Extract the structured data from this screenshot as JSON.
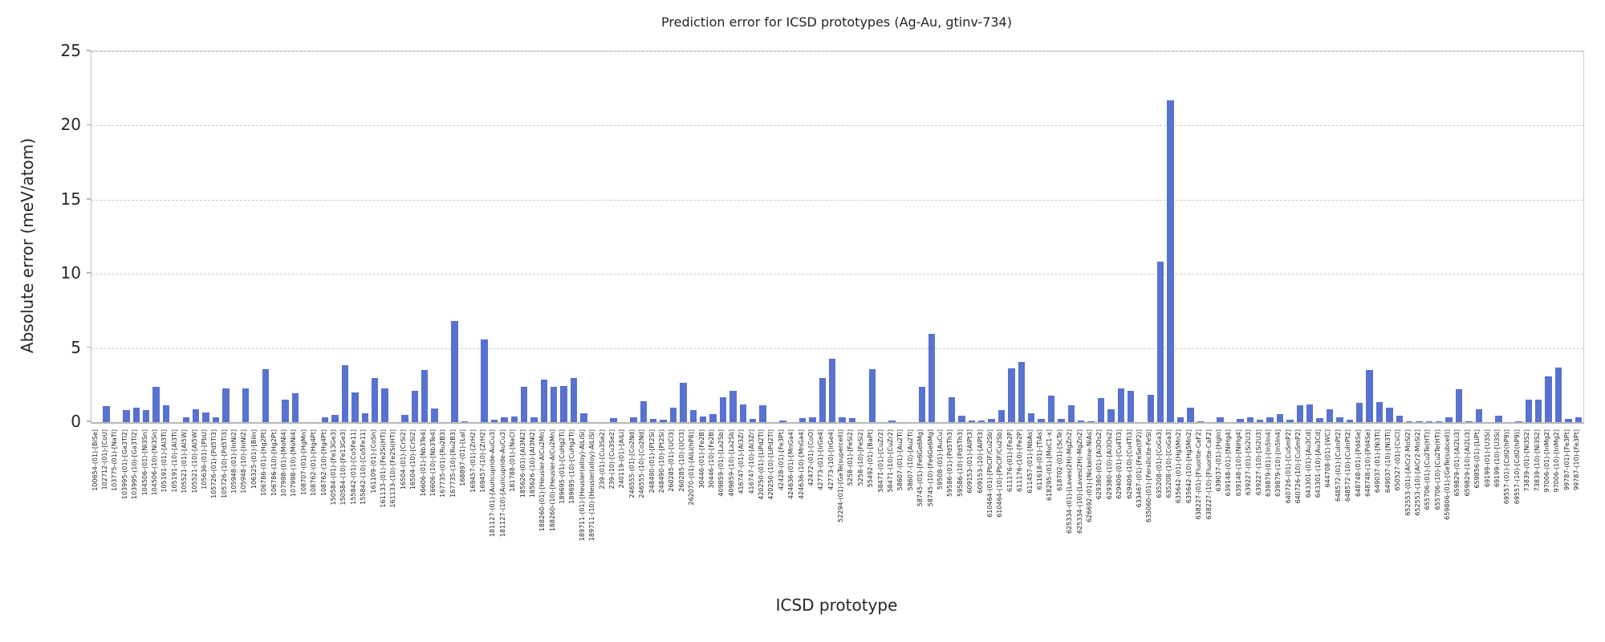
{
  "figure": {
    "background": "#ffffff"
  },
  "style": {
    "bar_color": "#5872d0",
    "grid_color": "#cccccc",
    "spine_color": "#c0c0c0",
    "text_color": "#262626"
  },
  "chart_data": {
    "type": "bar",
    "title": "Prediction error for ICSD prototypes (Ag-Au, gtinv-734)",
    "xlabel": "ICSD prototype",
    "ylabel": "Absolute error (meV/atom)",
    "ylim": [
      0,
      25
    ],
    "yticks": [
      0,
      5,
      10,
      15,
      20,
      25
    ],
    "grid": "horizontal-dashed",
    "legend": "none",
    "categories": [
      "100654-(01)-[BiSe]",
      "102712-(01)-[CoU]",
      "103775-(01)-[NaTl]",
      "103995-(01)-[Ga3Ti2]",
      "103995-(10)-[Ga3Ti2]",
      "104506-(01)-[Ni3Sn]",
      "104506-(10)-[Ni3Sn]",
      "105191-(01)-[Al3Ti]",
      "105191-(10)-[Al3Ti]",
      "105521-(01)-[Al5W]",
      "105521-(10)-[Al5W]",
      "105636-(01)-[PbU]",
      "105726-(01)-[Pd5Ti3]",
      "105726-(10)-[Pd5Ti3]",
      "105948-(01)-[InNi2]",
      "105948-(10)-[InNi2]",
      "106325-(01)-[BiIn]",
      "106786-(01)-[Hg2Pt]",
      "106786-(10)-[Hg2Pt]",
      "107998-(01)-[MoNi4]",
      "107998-(10)-[MoNi4]",
      "108707-(01)-[HgMn]",
      "108762-(01)-[Hg4Pt]",
      "108762-(10)-[Hg4Pt]",
      "150584-(01)-[Fe13Ge3]",
      "150584-(10)-[Fe13Ge3]",
      "155842-(01)-[Co5Fe11]",
      "155842-(10)-[Co5Fe11]",
      "161109-(01)-[CoSn]",
      "161133-(01)-[Fe2Si(HT)]",
      "161133-(10)-[Fe2Si(HT)]",
      "16504-(01)-[CrSi2]",
      "16504-(10)-[CrSi2]",
      "16606-(01)-[Nb3Te4]",
      "16606-(10)-[Nb3Te4]",
      "167735-(01)-[Ru2B3]",
      "167735-(10)-[Ru2B3]",
      "168897-(01)-[LaI]",
      "169457-(01)-[ZrH2]",
      "169457-(10)-[ZrH2]",
      "181127-(01)-[Auricupride-AuCu3]",
      "181127-(10)-[Auricupride-AuCu3]",
      "181788-(01)-[NaCl]",
      "185626-(01)-[Al3Ni2]",
      "185626-(10)-[Al3Ni2]",
      "188260-(01)-[Heusler-AlCu2Mn]",
      "188260-(10)-[Heusler-AlCu2Mn]",
      "189695-(01)-[CuHg2Ti]",
      "189695-(10)-[CuHg2Ti]",
      "189711-(01)-[Heusler(alloy)-AlLiSi]",
      "189711-(10)-[Heusler(alloy)-AlLiSi]",
      "239-(01)-[Cu3Se2]",
      "239-(10)-[Cu3Se2]",
      "240119-(01)-[AlLi]",
      "246555-(01)-[Co2Nd]",
      "246555-(10)-[Co2Nd]",
      "248490-(01)-[Pt2Si]",
      "248490-(10)-[Pt2Si]",
      "260285-(01)-[UCl3]",
      "260285-(10)-[UCl3]",
      "262070-(01)-[AlLi(hP8)]",
      "30446-(01)-[Fe2B]",
      "30446-(10)-[Fe2B]",
      "409859-(01)-[La2Sb]",
      "409859-(10)-[La2Sb]",
      "416747-(01)-[Al3Zr]",
      "416747-(10)-[Al3Zr]",
      "420250-(01)-[LiPd2Tl]",
      "420250-(10)-[LiPd2Tl]",
      "42428-(01)-[Fe3Pt]",
      "424636-(01)-[MnGa4]",
      "424636-(10)-[MnGa4]",
      "42472-(01)-[CoO]",
      "42773-(01)-[IrGe4]",
      "42773-(10)-[IrGe4]",
      "52294-(01)-[GeTe(supercell)]",
      "5258-(01)-[FeSi2]",
      "5258-(10)-[FeSi2]",
      "55492-(01)-[BaPt]",
      "58471-(01)-[CuZr2]",
      "58471-(10)-[CuZr2]",
      "58607-(01)-[Au2Ti]",
      "58607-(10)-[Au2Ti]",
      "58745-(01)-[Fe6Ge6Mg]",
      "58745-(10)-[Fe6Ge6Mg]",
      "59508-(01)-[AuCu]",
      "59586-(01)-[Pd5Th3]",
      "59586-(10)-[Pd5Th3]",
      "609153-(01)-[AlPt3]",
      "609153-(10)-[AlPt3]",
      "610464-(01)-[PbClF/Cu2Sb]",
      "610464-(10)-[PbClF/Cu2Sb]",
      "611176-(01)-[Fe2P]",
      "611176-(10)-[Fe2P]",
      "611457-(01)-[NbAs]",
      "611618-(01)-[TiAs]",
      "618295-(01)-[MoC1-x]",
      "618702-(01)-[ScTe]",
      "625334-(01)-[Laves(2H)-MgZn2]",
      "625334-(10)-[Laves(2H)-MgZn2]",
      "626692-(01)-[Nickeline-NiAs]",
      "629380-(01)-[Al3Os2]",
      "629380-(10)-[Al3Os2]",
      "629406-(01)-[Cu4Ti3]",
      "629406-(10)-[Cu4Ti3]",
      "633467-(01)-[FeSe(tP2)]",
      "635060-(01)-[Fersilicite-FeSi]",
      "635208-(01)-[CoGa3]",
      "635208-(10)-[CoGa3]",
      "635642-(01)-[Hg5Mn2]",
      "635642-(10)-[Hg5Mn2]",
      "638227-(01)-[Fluorite-CaF2]",
      "638227-(10)-[Fluorite-CaF2]",
      "639037-(01)-[HgIn]",
      "639148-(01)-[NiHg4]",
      "639148-(10)-[NiHg4]",
      "639227-(01)-[Si2U3]",
      "639227-(10)-[Si2U3]",
      "639879-(01)-[In5In4]",
      "639879-(10)-[In5In4]",
      "640726-(01)-[CuSmP2]",
      "640726-(10)-[CuSmP2]",
      "643301-(01)-[Au3Cd]",
      "643301-(10)-[Au3Cd]",
      "644708-(01)-[WC]",
      "648572-(01)-[CuInPt2]",
      "648572-(10)-[CuInPt2]",
      "648748-(01)-[Pd4Se]",
      "648748-(10)-[Pd4Se]",
      "649037-(01)-[Ni3Ti]",
      "649037-(10)-[Ni3Ti]",
      "650527-(01)-[CsCl]",
      "652553-(01)-[AlCr2-MoSi2]",
      "652553-(10)-[AlCr2-MoSi2]",
      "655706-(01)-[Cu2Te(HT)]",
      "655706-(10)-[Cu2Te(HT)]",
      "659806-(01)-[GeTe(subcell)]",
      "659829-(01)-[Al2Li3]",
      "659829-(10)-[Al2Li3]",
      "659856-(01)-[LiPt]",
      "69199-(01)-[U3Si]",
      "69199-(10)-[U3Si]",
      "69557-(01)-[CdI2(hP9)]",
      "69557-(10)-[CdI2(hP9)]",
      "73839-(01)-[Ni3S2]",
      "73839-(10)-[Ni3S2]",
      "97006-(01)-[InMg2]",
      "97006-(10)-[InMg2]",
      "99787-(01)-[Fe3Pt]",
      "99787-(10)-[Fe3Pt]"
    ],
    "values": [
      0,
      1.1,
      0,
      0.8,
      0.95,
      0.8,
      2.4,
      1.15,
      0,
      0.35,
      0.85,
      0.65,
      0.35,
      2.3,
      0,
      2.3,
      0,
      3.55,
      0,
      1.5,
      1.95,
      0,
      0,
      0.3,
      0.5,
      3.85,
      2.0,
      0.6,
      3.0,
      2.25,
      0,
      0.5,
      2.1,
      3.5,
      0.9,
      0,
      6.8,
      0.05,
      0,
      5.6,
      0.15,
      0.3,
      0.4,
      2.4,
      0.3,
      2.85,
      2.4,
      2.45,
      2.95,
      0.6,
      0,
      0,
      0.25,
      0,
      0.35,
      1.4,
      0.2,
      0.15,
      0.95,
      2.65,
      0.8,
      0.4,
      0.55,
      1.7,
      2.1,
      1.2,
      0.2,
      1.15,
      0,
      0.1,
      0,
      0.25,
      0.3,
      2.95,
      4.3,
      0.3,
      0.25,
      0,
      3.55,
      0,
      0.1,
      0,
      0,
      2.4,
      5.95,
      0,
      1.7,
      0.45,
      0.1,
      0.1,
      0.2,
      0.8,
      3.65,
      4.05,
      0.6,
      0.2,
      1.8,
      0.2,
      1.15,
      0.1,
      0.05,
      1.6,
      0.85,
      2.25,
      2.1,
      0,
      1.85,
      10.8,
      21.7,
      0.3,
      0.95,
      0.05,
      0,
      0.35,
      0,
      0.2,
      0.35,
      0.15,
      0.3,
      0.55,
      0.15,
      1.15,
      1.2,
      0.25,
      0.85,
      0.35,
      0.15,
      1.3,
      3.5,
      1.35,
      1.0,
      0.45,
      0.05,
      0.05,
      0.05,
      0.05,
      0.35,
      2.2,
      0.05,
      0.85,
      0,
      0.45,
      0,
      0.05,
      1.5,
      1.5,
      3.1,
      3.7,
      0.2,
      0.35
    ]
  }
}
